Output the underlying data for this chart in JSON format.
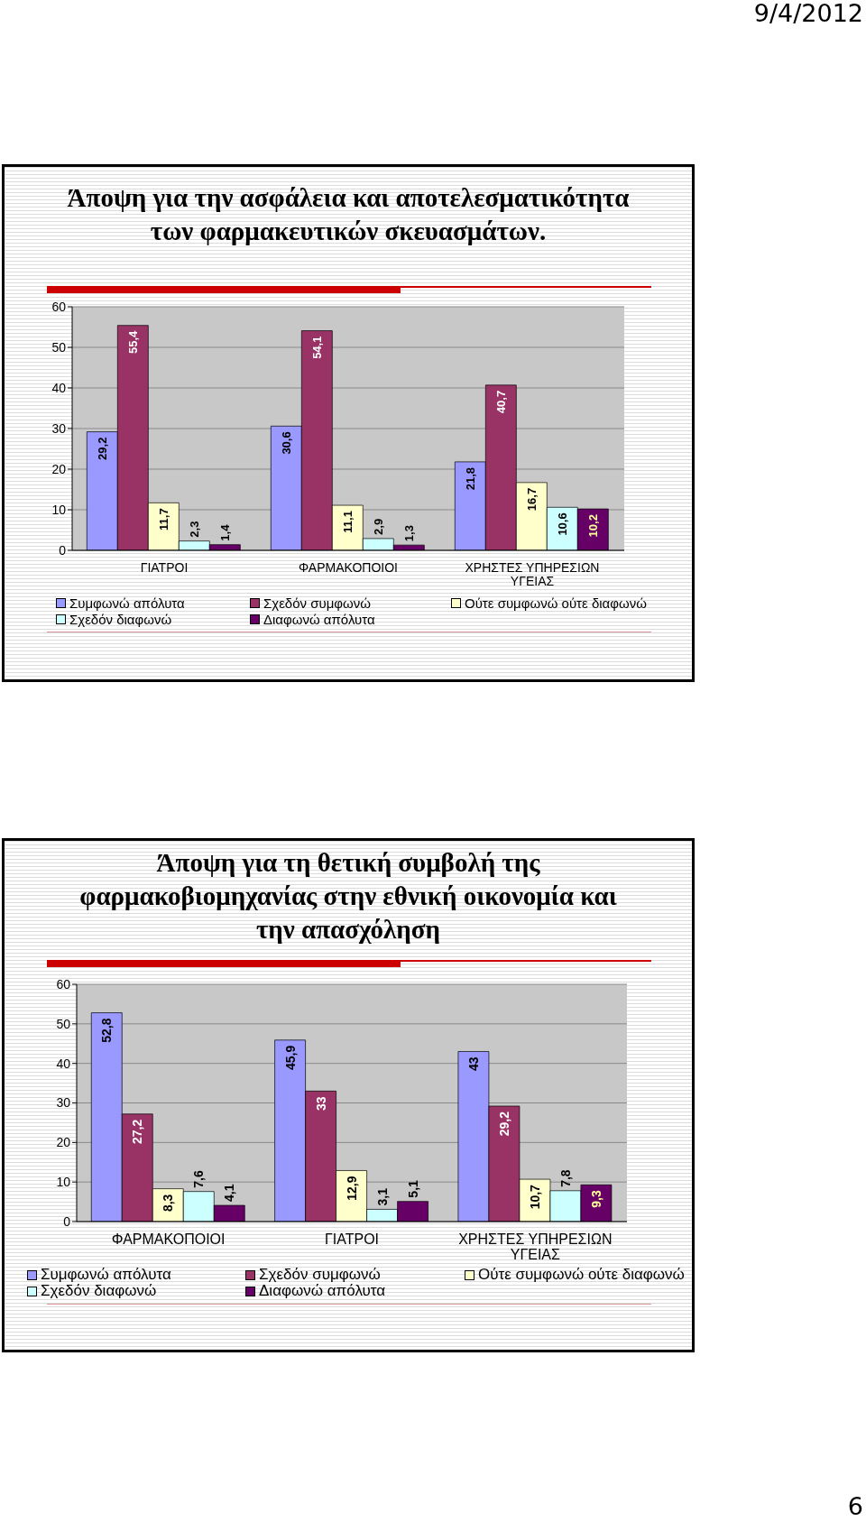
{
  "chart_data": [
    {
      "type": "bar",
      "title": "Άποψη για την ασφάλεια και αποτελεσματικότητα των φαρμακευτικών σκευασμάτων.",
      "categories": [
        "ΓΙΑΤΡΟΙ",
        "ΦΑΡΜΑΚΟΠΟΙΟΙ",
        "ΧΡΗΣΤΕΣ ΥΠΗΡΕΣΙΩΝ ΥΓΕΙΑΣ"
      ],
      "series": [
        {
          "name": "Συμφωνώ απόλυτα",
          "color": "#9999ff",
          "values": [
            29.2,
            30.6,
            21.8
          ],
          "value_labels": [
            "29,2",
            "30,6",
            "21,8"
          ]
        },
        {
          "name": "Σχεδόν συμφωνώ",
          "color": "#993366",
          "values": [
            55.4,
            54.1,
            40.7
          ],
          "value_labels": [
            "55,4",
            "54,1",
            "40,7"
          ]
        },
        {
          "name": "Ούτε συμφωνώ ούτε διαφωνώ",
          "color": "#ffffcc",
          "values": [
            11.7,
            11.1,
            16.7
          ],
          "value_labels": [
            "11,7",
            "11,1",
            "16,7"
          ]
        },
        {
          "name": "Σχεδόν διαφωνώ",
          "color": "#ccffff",
          "values": [
            2.3,
            2.9,
            10.6
          ],
          "value_labels": [
            "2,3",
            "2,9",
            "10,6"
          ]
        },
        {
          "name": "Διαφωνώ απόλυτα",
          "color": "#660066",
          "values": [
            1.4,
            1.3,
            10.2
          ],
          "value_labels": [
            "1,4",
            "1,3",
            "10,2"
          ]
        }
      ],
      "ylim": [
        0,
        60
      ],
      "yticks": [
        0,
        10,
        20,
        30,
        40,
        50,
        60
      ],
      "grid": "y",
      "legend": "bottom",
      "annotations": [
        "9/4/2012"
      ]
    },
    {
      "type": "bar",
      "title": "Άποψη για τη θετική συμβολή της φαρμακοβιομηχανίας στην εθνική οικονομία και την απασχόληση",
      "categories": [
        "ΦΑΡΜΑΚΟΠΟΙΟΙ",
        "ΓΙΑΤΡΟΙ",
        "ΧΡΗΣΤΕΣ ΥΠΗΡΕΣΙΩΝ ΥΓΕΙΑΣ"
      ],
      "series": [
        {
          "name": "Συμφωνώ απόλυτα",
          "color": "#9999ff",
          "values": [
            52.8,
            45.9,
            43
          ],
          "value_labels": [
            "52,8",
            "45,9",
            "43"
          ]
        },
        {
          "name": "Σχεδόν συμφωνώ",
          "color": "#993366",
          "values": [
            27.2,
            33,
            29.2
          ],
          "value_labels": [
            "27,2",
            "33",
            "29,2"
          ]
        },
        {
          "name": "Ούτε συμφωνώ ούτε διαφωνώ",
          "color": "#ffffcc",
          "values": [
            8.3,
            12.9,
            10.7
          ],
          "value_labels": [
            "8,3",
            "12,9",
            "10,7"
          ]
        },
        {
          "name": "Σχεδόν διαφωνώ",
          "color": "#ccffff",
          "values": [
            7.6,
            3.1,
            7.8
          ],
          "value_labels": [
            "7,6",
            "3,1",
            "7,8"
          ]
        },
        {
          "name": "Διαφωνώ απόλυτα",
          "color": "#660066",
          "values": [
            4.1,
            5.1,
            9.3
          ],
          "value_labels": [
            "4,1",
            "5,1",
            "9,3"
          ]
        }
      ],
      "ylim": [
        0,
        60
      ],
      "yticks": [
        0,
        10,
        20,
        30,
        40,
        50,
        60
      ],
      "grid": "y",
      "legend": "bottom",
      "annotations": [
        "6"
      ]
    }
  ]
}
